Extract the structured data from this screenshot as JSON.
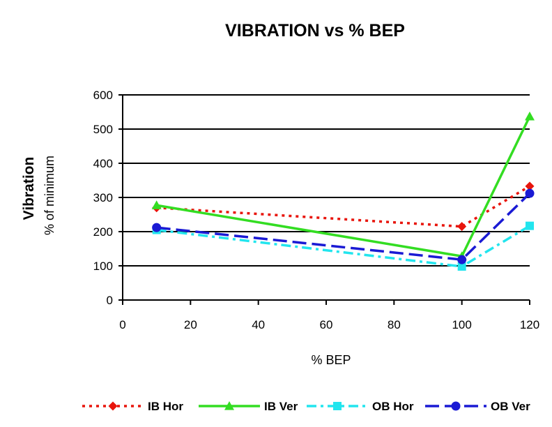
{
  "chart_data": {
    "type": "line",
    "title": "VIBRATION vs % BEP",
    "xlabel": "% BEP",
    "ylabel": "Vibration",
    "ylabel_sub": "% of minimum",
    "xlim": [
      0,
      120
    ],
    "ylim": [
      0,
      600
    ],
    "x_ticks": [
      0,
      20,
      40,
      60,
      80,
      100,
      120
    ],
    "y_ticks": [
      0,
      100,
      200,
      300,
      400,
      500,
      600
    ],
    "grid": "horizontal",
    "legend_position": "bottom",
    "x": [
      10,
      100,
      120
    ],
    "series": [
      {
        "name": "IB Hor",
        "values": [
          270,
          215,
          333
        ],
        "color": "#e8150c",
        "dash": "dotted",
        "marker": "diamond"
      },
      {
        "name": "IB Ver",
        "values": [
          277,
          128,
          537
        ],
        "color": "#33dd22",
        "dash": "solid",
        "marker": "triangle"
      },
      {
        "name": "OB Hor",
        "values": [
          205,
          98,
          217
        ],
        "color": "#22e5ee",
        "dash": "dashdot",
        "marker": "square"
      },
      {
        "name": "OB Ver",
        "values": [
          212,
          118,
          312
        ],
        "color": "#1a1ad4",
        "dash": "longdash",
        "marker": "circle"
      }
    ]
  }
}
